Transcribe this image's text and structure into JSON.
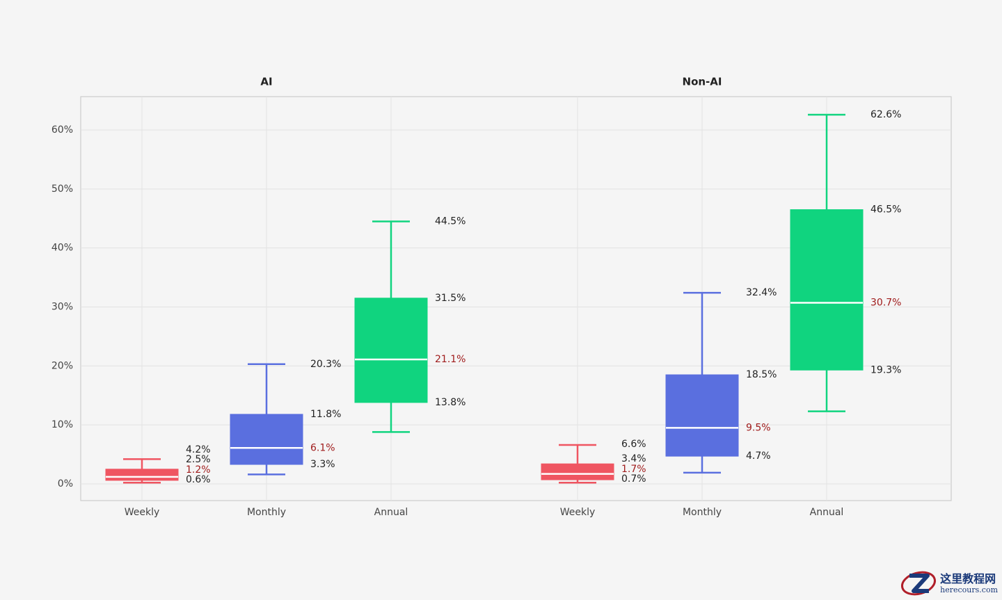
{
  "chart_data": [
    {
      "type": "box",
      "title": "AI",
      "xlabel": "",
      "ylabel": "",
      "ylim": [
        -3,
        65
      ],
      "yticks": [
        0,
        10,
        20,
        30,
        40,
        50,
        60
      ],
      "ytick_labels": [
        "0%",
        "10%",
        "20%",
        "30%",
        "40%",
        "50%",
        "60%"
      ],
      "grid": true,
      "categories": [
        "Weekly",
        "Monthly",
        "Annual"
      ],
      "boxes": [
        {
          "category": "Weekly",
          "color": "#ef5561",
          "whisker_low": 0.2,
          "q1": 0.6,
          "median": 1.2,
          "q3": 2.5,
          "whisker_high": 4.2,
          "labels": {
            "high": "4.2%",
            "q3": "2.5%",
            "median": "1.2%",
            "q1": "0.6%"
          }
        },
        {
          "category": "Monthly",
          "color": "#5a6fdf",
          "whisker_low": 1.6,
          "q1": 3.3,
          "median": 6.1,
          "q3": 11.8,
          "whisker_high": 20.3,
          "labels": {
            "high": "20.3%",
            "q3": "11.8%",
            "median": "6.1%",
            "q1": "3.3%"
          }
        },
        {
          "category": "Annual",
          "color": "#10d47f",
          "whisker_low": 8.8,
          "q1": 13.8,
          "median": 21.1,
          "q3": 31.5,
          "whisker_high": 44.5,
          "labels": {
            "high": "44.5%",
            "q3": "31.5%",
            "median": "21.1%",
            "q1": "13.8%"
          }
        }
      ]
    },
    {
      "type": "box",
      "title": "Non-AI",
      "xlabel": "",
      "ylabel": "",
      "ylim": [
        -3,
        65
      ],
      "grid": true,
      "categories": [
        "Weekly",
        "Monthly",
        "Annual"
      ],
      "boxes": [
        {
          "category": "Weekly",
          "color": "#ef5561",
          "whisker_low": 0.2,
          "q1": 0.7,
          "median": 1.7,
          "q3": 3.4,
          "whisker_high": 6.6,
          "labels": {
            "high": "6.6%",
            "q3": "3.4%",
            "median": "1.7%",
            "q1": "0.7%"
          }
        },
        {
          "category": "Monthly",
          "color": "#5a6fdf",
          "whisker_low": 1.9,
          "q1": 4.7,
          "median": 9.5,
          "q3": 18.5,
          "whisker_high": 32.4,
          "labels": {
            "high": "32.4%",
            "q3": "18.5%",
            "median": "9.5%",
            "q1": "4.7%"
          }
        },
        {
          "category": "Annual",
          "color": "#10d47f",
          "whisker_low": 12.3,
          "q1": 19.3,
          "median": 30.7,
          "q3": 46.5,
          "whisker_high": 62.6,
          "labels": {
            "high": "62.6%",
            "q3": "46.5%",
            "median": "30.7%",
            "q1": "19.3%"
          }
        }
      ]
    }
  ],
  "colors": {
    "median_label": "#a01c1c",
    "label": "#222222",
    "axis_text": "#444444",
    "grid": "#e2e2e2",
    "frame": "#cccccc"
  },
  "watermark": {
    "logo_icon": "z-logo-icon",
    "text_cn": "这里教程网",
    "text_en": "herecours.com"
  }
}
